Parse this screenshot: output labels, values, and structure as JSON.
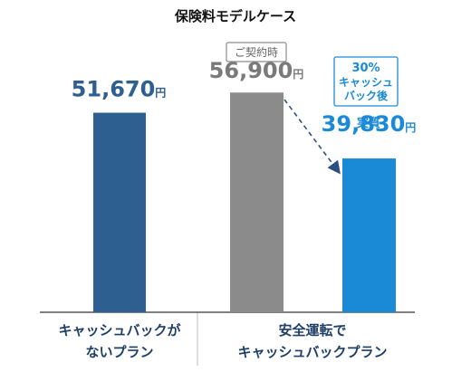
{
  "chart_data": {
    "type": "bar",
    "title": "保険料モデルケース",
    "categories": [
      [
        "キャッシュバックが",
        "ないプラン"
      ],
      [
        "安全運転で",
        "キャッシュバックプラン"
      ]
    ],
    "unit": "円",
    "bars": [
      {
        "label": "",
        "value": 51670,
        "value_text": "51,670",
        "category_index": 0
      },
      {
        "label": "ご契約時",
        "value": 56900,
        "value_text": "56,900",
        "category_index": 1
      },
      {
        "label": "実質",
        "value": 39830,
        "value_text": "39,830",
        "category_index": 1
      }
    ],
    "callout_lines": [
      "30%",
      "キャッシュ",
      "バック後"
    ],
    "ylim": [
      0,
      60000
    ],
    "colors": {
      "bar1": "#2e5f91",
      "bar2": "#8b8b8b",
      "bar3": "#1a8ad6",
      "value1": "#2e5f91",
      "value2": "#7a7a7a",
      "value3": "#1a8ad6",
      "arrow": "#2b4f7f",
      "axis": "#555555",
      "divider": "#c9c9c9"
    }
  }
}
